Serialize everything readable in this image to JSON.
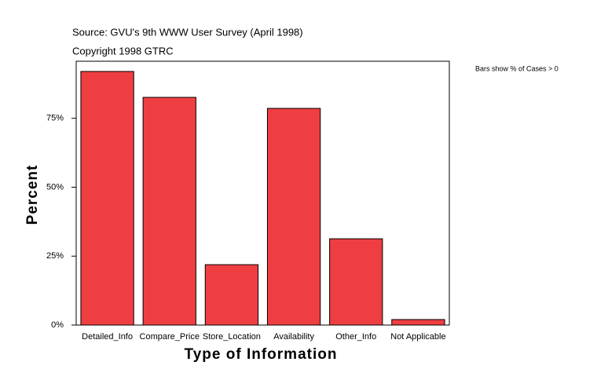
{
  "chart_data": {
    "type": "bar",
    "title": "Source: GVU's 9th WWW User Survey (April 1998)",
    "subtitle": "Copyright 1998 GTRC",
    "annotation": "Bars show % of Cases > 0",
    "y_label": "Percent",
    "x_label": "Type of Information",
    "categories": [
      "Detailed_Info",
      "Compare_Price",
      "Store_Location",
      "Availability",
      "Other_Info",
      "Not Applicable"
    ],
    "values": [
      92.0,
      82.6,
      21.9,
      78.6,
      31.3,
      2.0
    ],
    "color": "#ef3e42",
    "ylim": [
      0,
      95.7
    ],
    "yticks": [
      {
        "value": 0,
        "label": "0%"
      },
      {
        "value": 25,
        "label": "25%"
      },
      {
        "value": 50,
        "label": "50%"
      },
      {
        "value": 75,
        "label": "75%"
      }
    ],
    "grid": false
  }
}
